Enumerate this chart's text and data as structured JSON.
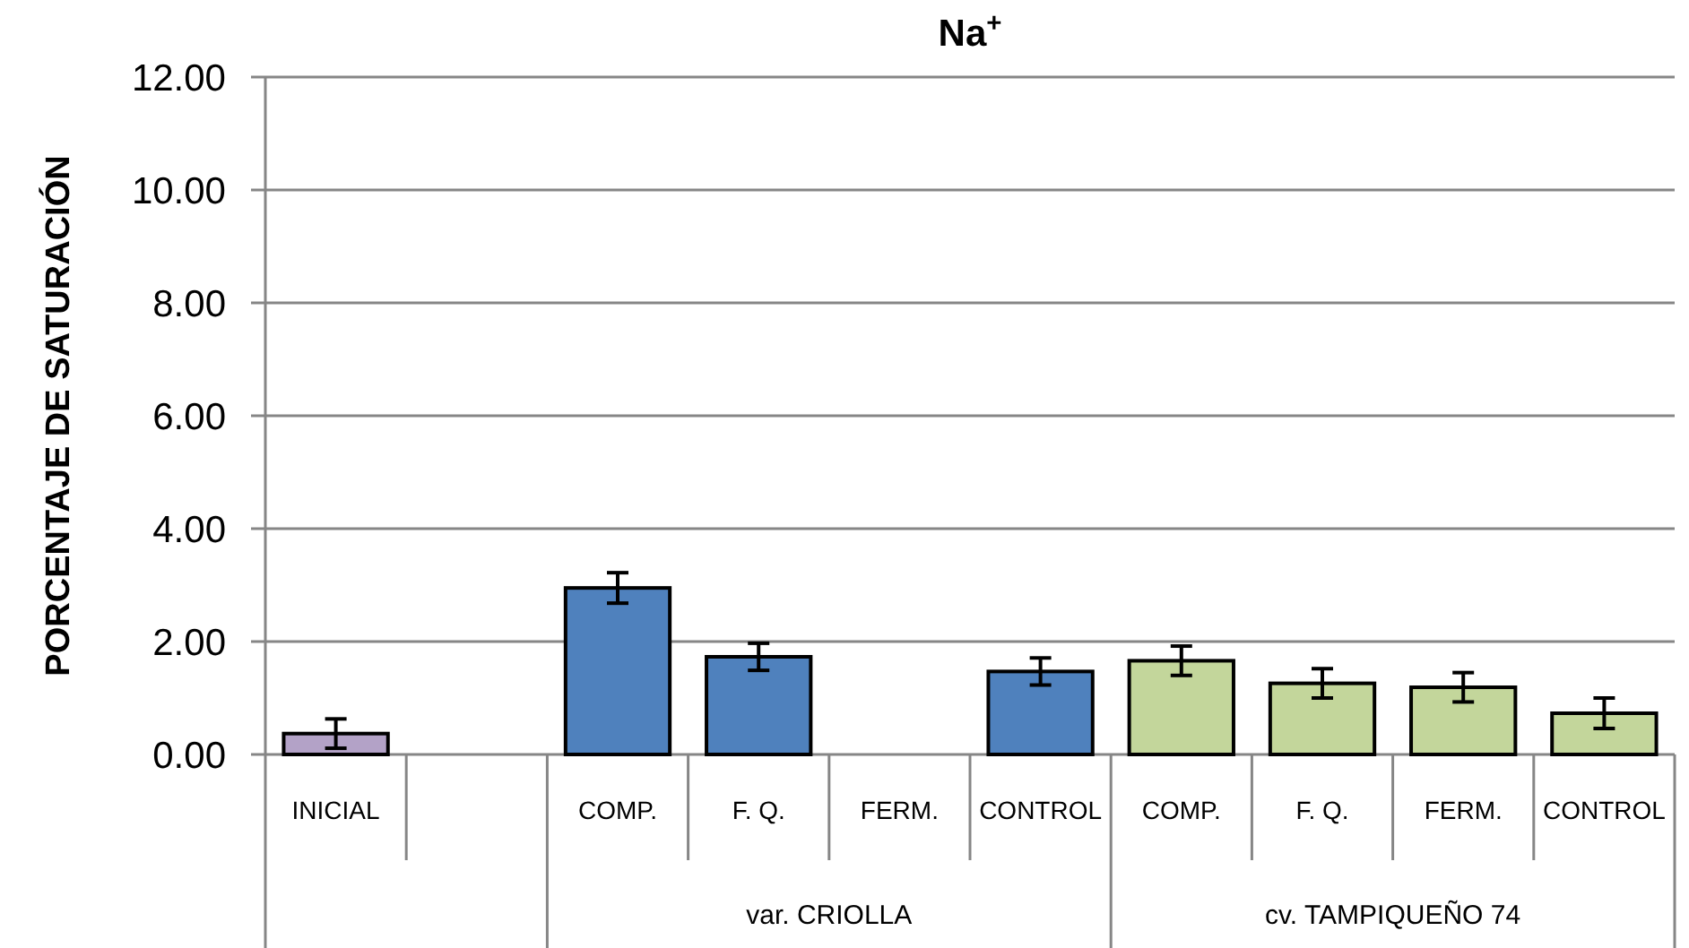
{
  "chart_data": {
    "type": "bar",
    "title": "Na$^{+}$",
    "ylabel": "PORCENTAJE DE SATURACIÓN",
    "categories": [
      "INICIAL",
      null,
      "COMP.",
      "F. Q.",
      "FERM.",
      "CONTROL",
      "COMP.",
      "F. Q.",
      "FERM.",
      "CONTROL"
    ],
    "values": [
      0.37,
      null,
      2.95,
      1.73,
      null,
      1.47,
      1.66,
      1.26,
      1.19,
      0.73
    ],
    "errors": [
      0.26,
      null,
      0.27,
      0.24,
      null,
      0.24,
      0.26,
      0.26,
      0.26,
      0.27
    ],
    "colors": [
      "#b3a2c7",
      null,
      "#4f81bd",
      "#4f81bd",
      null,
      "#4f81bd",
      "#c3d69b",
      "#c3d69b",
      "#c3d69b",
      "#c3d69b"
    ],
    "ylim": [
      0,
      12
    ],
    "yticks": [
      {
        "value": 0,
        "label": "0.00"
      },
      {
        "value": 2,
        "label": "2.00"
      },
      {
        "value": 4,
        "label": "4.00"
      },
      {
        "value": 6,
        "label": "6.00"
      },
      {
        "value": 8,
        "label": "8.00"
      },
      {
        "value": 10,
        "label": "10.00"
      },
      {
        "value": 12,
        "label": "12.00"
      }
    ],
    "grid": "y",
    "annotations": [
      "var. CRIOLLA",
      "cv. TAMPIQUEÑO 74"
    ]
  }
}
